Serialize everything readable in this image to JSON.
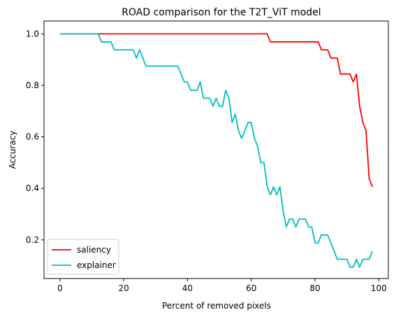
{
  "chart_data": {
    "type": "line",
    "title": "ROAD comparison for the T2T_ViT model",
    "xlabel": "Percent of removed pixels",
    "ylabel": "Accuracy",
    "xlim": [
      -5,
      103
    ],
    "ylim": [
      0.05,
      1.05
    ],
    "xticks": [
      0,
      20,
      40,
      60,
      80,
      100
    ],
    "yticks": [
      0.2,
      0.4,
      0.6,
      0.8,
      1.0
    ],
    "xtick_labels": [
      "0",
      "20",
      "40",
      "60",
      "80",
      "100"
    ],
    "ytick_labels": [
      "0.2",
      "0.4",
      "0.6",
      "0.8",
      "1.0"
    ],
    "grid": false,
    "legend_position": "lower-left",
    "series": [
      {
        "name": "saliency",
        "color": "#ff0000",
        "x": [
          0,
          12,
          65,
          66,
          81,
          82,
          84,
          85,
          87,
          88,
          91,
          92,
          93,
          94,
          95,
          96,
          97,
          98
        ],
        "y": [
          1.0,
          1.0,
          1.0,
          0.969,
          0.969,
          0.938,
          0.938,
          0.906,
          0.906,
          0.844,
          0.844,
          0.813,
          0.844,
          0.719,
          0.656,
          0.625,
          0.438,
          0.406
        ]
      },
      {
        "name": "explainer",
        "color": "#00bfbf",
        "x": [
          0,
          12,
          13,
          16,
          17,
          23,
          24,
          25,
          27,
          37,
          39,
          40,
          41,
          43,
          44,
          45,
          47,
          48,
          49,
          50,
          51,
          52,
          53,
          54,
          55,
          56,
          57,
          58,
          59,
          60,
          61,
          62,
          63,
          64,
          65,
          66,
          67,
          68,
          69,
          70,
          71,
          72,
          73,
          74,
          75,
          76,
          77,
          78,
          79,
          80,
          81,
          82,
          83,
          84,
          85,
          86,
          87,
          88,
          89,
          90,
          91,
          92,
          93,
          94,
          95,
          96,
          97,
          98
        ],
        "y": [
          1.0,
          1.0,
          0.969,
          0.969,
          0.938,
          0.938,
          0.906,
          0.938,
          0.875,
          0.875,
          0.813,
          0.813,
          0.781,
          0.781,
          0.813,
          0.75,
          0.75,
          0.719,
          0.75,
          0.719,
          0.719,
          0.781,
          0.75,
          0.656,
          0.688,
          0.625,
          0.594,
          0.625,
          0.656,
          0.656,
          0.594,
          0.563,
          0.5,
          0.5,
          0.406,
          0.375,
          0.406,
          0.375,
          0.406,
          0.313,
          0.25,
          0.281,
          0.281,
          0.25,
          0.281,
          0.281,
          0.281,
          0.25,
          0.25,
          0.188,
          0.188,
          0.219,
          0.219,
          0.219,
          0.188,
          0.156,
          0.125,
          0.125,
          0.125,
          0.125,
          0.094,
          0.094,
          0.125,
          0.094,
          0.125,
          0.125,
          0.125,
          0.156
        ]
      }
    ]
  }
}
